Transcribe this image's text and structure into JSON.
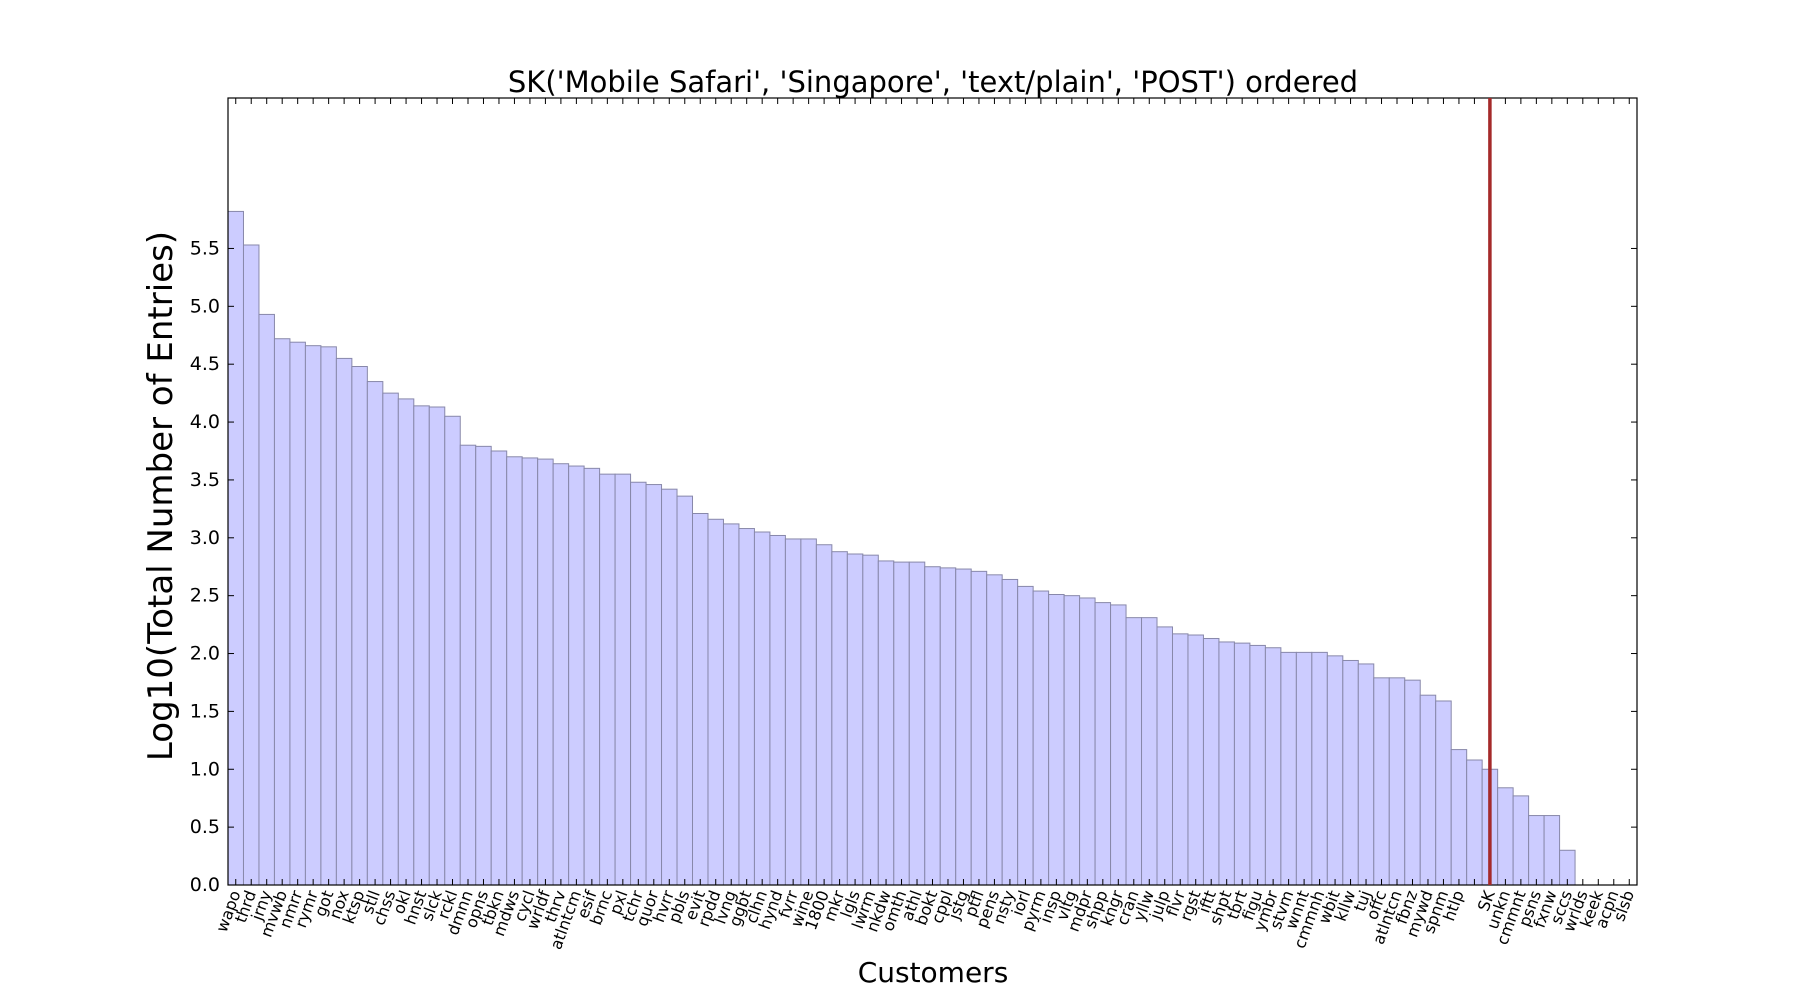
{
  "chart_data": {
    "type": "bar",
    "title": "SK('Mobile Safari', 'Singapore', 'text/plain', 'POST') ordered",
    "x_label": "Customers",
    "y_label": "Log10(Total Number of Entries)",
    "categories": [
      "wapo",
      "thrd",
      "jrny",
      "mvwb",
      "nmrr",
      "rymr",
      "got",
      "nox",
      "ktsp",
      "stll",
      "chss",
      "okl",
      "hnst",
      "slck",
      "rckl",
      "dmnn",
      "opns",
      "tbkn",
      "mdws",
      "cycl",
      "wrldf",
      "thrv",
      "atlntcm",
      "esif",
      "brnc",
      "pxl",
      "tchr",
      "quor",
      "hvrr",
      "pbls",
      "evit",
      "rpdd",
      "lvng",
      "ggbt",
      "clhn",
      "hynd",
      "fvrr",
      "wine",
      "1800",
      "mkr",
      "lgls",
      "lwrm",
      "nkdw",
      "omth",
      "athl",
      "bokt",
      "cppl",
      "jstg",
      "ptfl",
      "pens",
      "nsty",
      "iorl",
      "pyrm",
      "insp",
      "vltg",
      "mdpr",
      "shpp",
      "kngr",
      "cran",
      "yllw",
      "julp",
      "flvr",
      "rgst",
      "iftt",
      "shpt",
      "tbrt",
      "figu",
      "ymbr",
      "stvm",
      "wnnt",
      "cmmnh",
      "wbit",
      "kllw",
      "tuj",
      "offc",
      "atlntcn",
      "fbnz",
      "mywd",
      "spnm",
      "htlp",
      null,
      "SK",
      "unkn",
      "cmmnt",
      "psns",
      "fxnw",
      "sccs",
      "wrlds",
      "keek",
      "acpn",
      "slsb"
    ],
    "values": [
      5.82,
      5.53,
      4.93,
      4.72,
      4.69,
      4.66,
      4.65,
      4.55,
      4.48,
      4.35,
      4.25,
      4.2,
      4.14,
      4.13,
      4.05,
      3.8,
      3.79,
      3.75,
      3.7,
      3.69,
      3.68,
      3.64,
      3.62,
      3.6,
      3.55,
      3.55,
      3.48,
      3.46,
      3.42,
      3.36,
      3.21,
      3.16,
      3.12,
      3.08,
      3.05,
      3.02,
      2.99,
      2.99,
      2.94,
      2.88,
      2.86,
      2.85,
      2.8,
      2.79,
      2.79,
      2.75,
      2.74,
      2.73,
      2.71,
      2.68,
      2.64,
      2.58,
      2.54,
      2.51,
      2.5,
      2.48,
      2.44,
      2.42,
      2.31,
      2.31,
      2.23,
      2.17,
      2.16,
      2.13,
      2.1,
      2.09,
      2.07,
      2.05,
      2.01,
      2.01,
      2.01,
      1.98,
      1.94,
      1.91,
      1.79,
      1.79,
      1.77,
      1.64,
      1.59,
      1.17,
      1.08,
      1.0,
      0.84,
      0.77,
      0.6,
      0.6,
      0.3,
      0,
      0,
      0,
      0
    ],
    "color": "#ccccff",
    "edge_color": "#8888aa",
    "highlight_index": 81,
    "highlight_color": "#a52a2a",
    "ylim": [
      0,
      6.8
    ],
    "yticks": [
      {
        "value": 0,
        "label": "0.0"
      },
      0.5,
      {
        "value": 1,
        "label": "1.0"
      },
      1.5,
      {
        "value": 2,
        "label": "2.0"
      },
      2.5,
      {
        "value": 3,
        "label": "3.0"
      },
      3.5,
      {
        "value": 4,
        "label": "4.0"
      },
      4.5,
      {
        "value": 5,
        "label": "5.0"
      },
      5.5
    ],
    "grid": false
  }
}
